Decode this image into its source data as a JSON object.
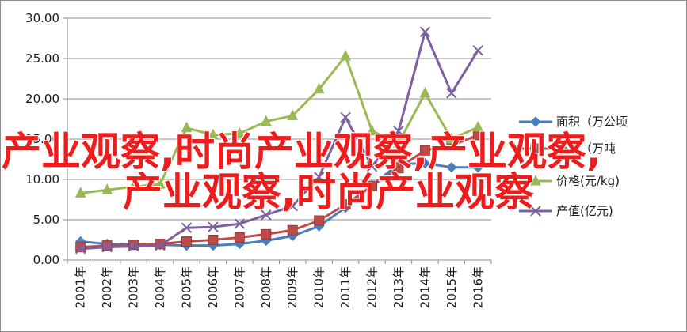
{
  "chart_data": {
    "type": "line",
    "categories": [
      "2001年",
      "2002年",
      "2003年",
      "2004年",
      "2005年",
      "2006年",
      "2007年",
      "2008年",
      "2009年",
      "2010年",
      "2011年",
      "2012年",
      "2013年",
      "2014年",
      "2015年",
      "2016年"
    ],
    "ylim": [
      0,
      30
    ],
    "yticks": [
      "0.00",
      "5.00",
      "10.00",
      "15.00",
      "20.00",
      "25.00",
      "30.00"
    ],
    "grid": true,
    "legend_position": "right",
    "series": [
      {
        "name": "面积（万公顷",
        "color": "#4a7ebb",
        "marker": "diamond",
        "values": [
          2.3,
          2.0,
          1.9,
          1.9,
          1.8,
          1.8,
          2.0,
          2.4,
          3.0,
          4.2,
          6.5,
          9.3,
          11.9,
          12.0,
          11.5,
          11.5
        ]
      },
      {
        "name": "产量（万吨",
        "color": "#be4b48",
        "marker": "square",
        "values": [
          1.6,
          1.8,
          1.9,
          2.0,
          2.3,
          2.5,
          2.8,
          3.2,
          3.7,
          4.9,
          6.9,
          9.2,
          11.4,
          13.6,
          14.2,
          15.5
        ]
      },
      {
        "name": "价格(元/kg)",
        "color": "#98b954",
        "marker": "triangle",
        "values": [
          8.3,
          8.7,
          9.1,
          9.4,
          16.4,
          15.5,
          15.7,
          17.2,
          17.9,
          21.2,
          25.3,
          16.0,
          14.5,
          20.7,
          15.0,
          16.5
        ]
      },
      {
        "name": "产值(亿元)",
        "color": "#7d60a0",
        "marker": "x",
        "values": [
          1.4,
          1.6,
          1.7,
          1.8,
          4.0,
          4.1,
          4.5,
          5.6,
          6.7,
          10.3,
          17.7,
          11.6,
          16.0,
          28.3,
          20.7,
          26.0
        ]
      }
    ]
  },
  "watermark": {
    "line1": "产业观察,时尚产业观察,产业观察,",
    "line2": "产业观察,时尚产业观察"
  }
}
